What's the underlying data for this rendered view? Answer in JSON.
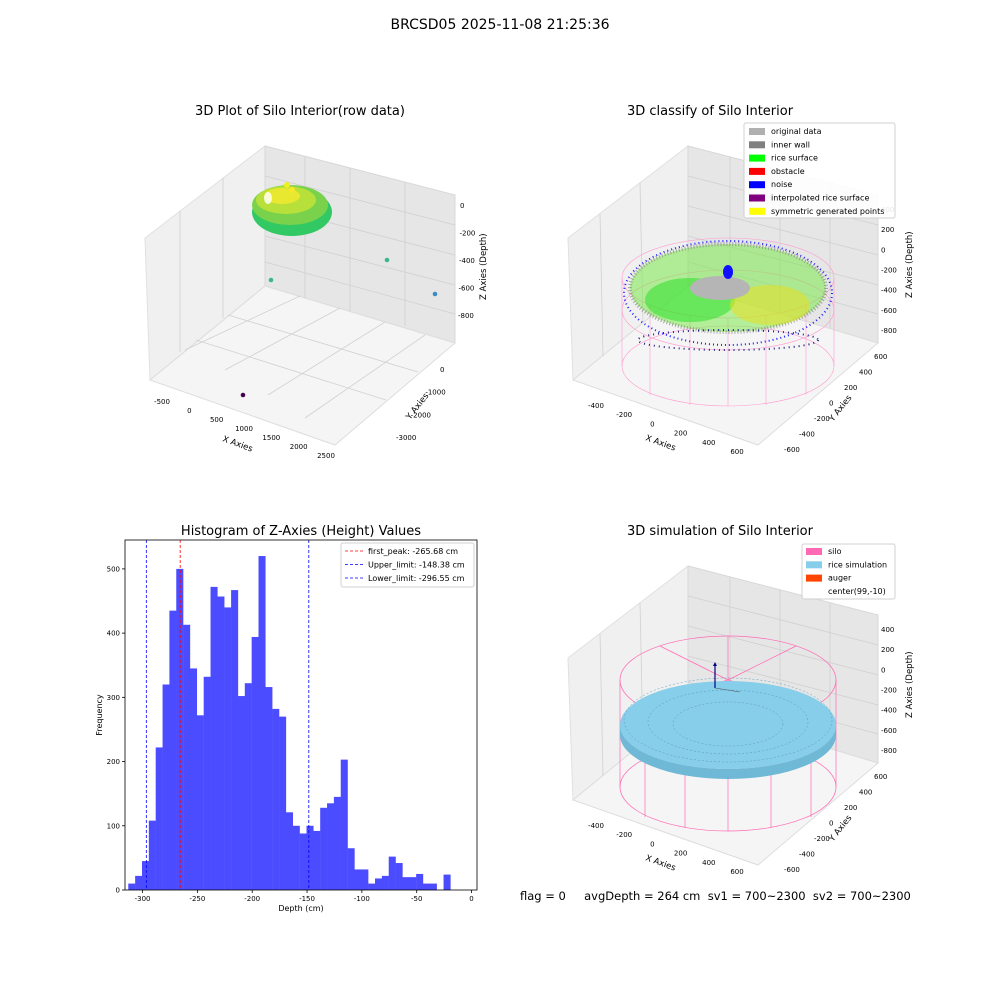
{
  "suptitle": "BRCSD05 2025-11-08 21:25:36",
  "panels": {
    "raw": {
      "title": "3D Plot of Silo Interior(row data)",
      "xlabel": "X Axies",
      "ylabel": "Y Axies",
      "zlabel": "Z Axies (Depth)",
      "xticks": [
        "-500",
        "0",
        "500",
        "1000",
        "1500",
        "2000",
        "2500"
      ],
      "yticks": [
        "0",
        "-1000",
        "-2000",
        "-3000"
      ],
      "zticks": [
        "0",
        "-200",
        "-400",
        "-600",
        "-800"
      ]
    },
    "classify": {
      "title": "3D classify of Silo Interior",
      "xlabel": "X Axies",
      "ylabel": "Y Axies",
      "zlabel": "Z Axies (Depth)",
      "xticks": [
        "-400",
        "-200",
        "0",
        "200",
        "400",
        "600"
      ],
      "yticks": [
        "600",
        "400",
        "200",
        "0",
        "-200",
        "-400",
        "-600"
      ],
      "zticks": [
        "400",
        "200",
        "0",
        "-200",
        "-400",
        "-600",
        "-800"
      ],
      "legend": [
        {
          "label": "original data",
          "color": "#b0b0b0"
        },
        {
          "label": "inner wall",
          "color": "#808080"
        },
        {
          "label": "rice surface",
          "color": "#00ff00"
        },
        {
          "label": "obstacle",
          "color": "#ff0000"
        },
        {
          "label": "noise",
          "color": "#0000ff"
        },
        {
          "label": "interpolated rice surface",
          "color": "#800080"
        },
        {
          "label": "symmetric generated points",
          "color": "#ffff00"
        }
      ]
    },
    "simulation": {
      "title": "3D simulation of Silo Interior",
      "xlabel": "X Axies",
      "ylabel": "Y Axies",
      "zlabel": "Z Axies (Depth)",
      "xticks": [
        "-400",
        "-200",
        "0",
        "200",
        "400",
        "600"
      ],
      "yticks": [
        "600",
        "400",
        "200",
        "0",
        "-200",
        "-400",
        "-600"
      ],
      "zticks": [
        "400",
        "200",
        "0",
        "-200",
        "-400",
        "-600",
        "-800"
      ],
      "legend": [
        {
          "label": "silo",
          "color": "#ff69b4"
        },
        {
          "label": "rice simulation",
          "color": "#87ceeb"
        },
        {
          "label": "auger",
          "color": "#ff4500"
        },
        {
          "label": "center(99,-10)",
          "color": ""
        }
      ]
    }
  },
  "chart_data": {
    "type": "bar",
    "title": "Histogram of Z-Axies (Height) Values",
    "xlabel": "Depth (cm)",
    "ylabel": "Frequency",
    "xlim": [
      -316,
      5
    ],
    "ylim": [
      0,
      545
    ],
    "xticks": [
      -300,
      -250,
      -200,
      -150,
      -100,
      -50,
      0
    ],
    "yticks": [
      0,
      100,
      200,
      300,
      400,
      500
    ],
    "bar_color": "#4b4bff",
    "bin_start": -313,
    "bin_width": 6.25,
    "counts": [
      10,
      22,
      45,
      108,
      222,
      320,
      435,
      500,
      413,
      345,
      272,
      332,
      472,
      457,
      440,
      467,
      302,
      322,
      394,
      520,
      316,
      282,
      270,
      121,
      100,
      88,
      100,
      92,
      128,
      135,
      145,
      203,
      65,
      32,
      32,
      10,
      18,
      22,
      52,
      42,
      20,
      20,
      25,
      10,
      10,
      0,
      24
    ],
    "vlines": [
      {
        "label": "first_peak: -265.68 cm",
        "x": -265.68,
        "color": "#ff0000"
      },
      {
        "label": "Upper_limit: -148.38 cm",
        "x": -148.38,
        "color": "#0000ff"
      },
      {
        "label": "Lower_limit: -296.55 cm",
        "x": -296.55,
        "color": "#0000ff"
      }
    ],
    "legend_position": "upper right"
  },
  "footer": {
    "text": "flag = 0     avgDepth = 264 cm  sv1 = 700~2300  sv2 = 700~2300"
  }
}
